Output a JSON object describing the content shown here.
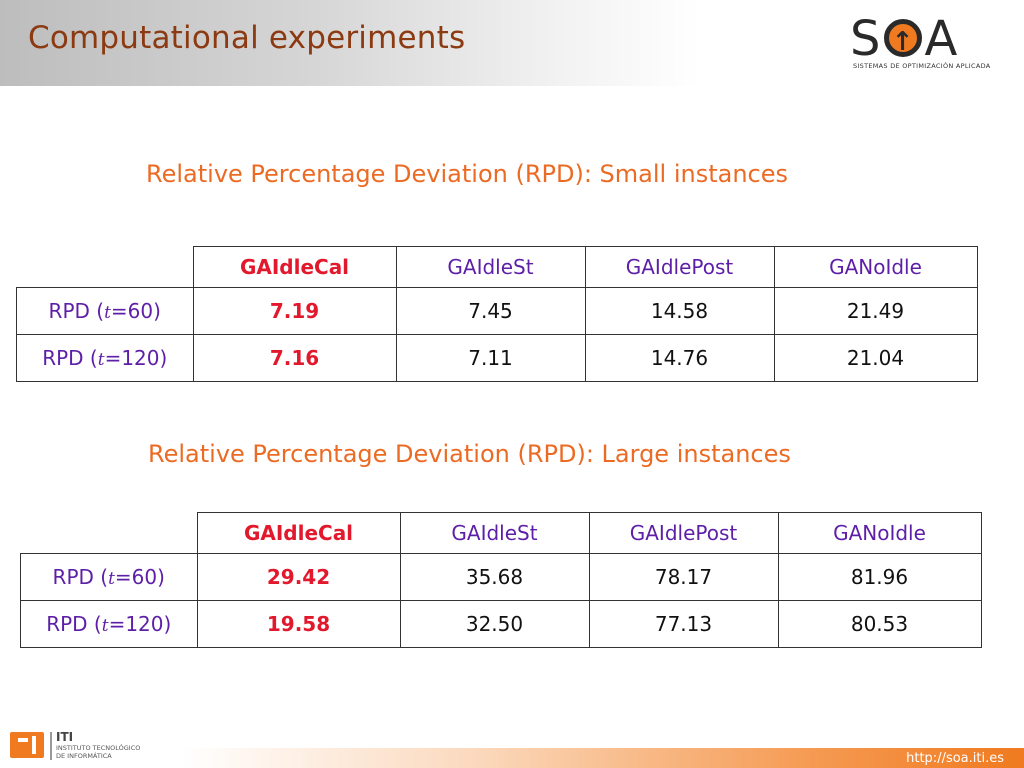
{
  "header": {
    "title": "Computational experiments"
  },
  "brand": {
    "soa_left": "S",
    "soa_right": "A",
    "soa_subtitle": "SISTEMAS DE OPTIMIZACIÓN APLICADA"
  },
  "sections": [
    {
      "title": "Relative Percentage Deviation (RPD): Small instances",
      "columns": [
        "GAIdleCal",
        "GAIdleSt",
        "GAIdlePost",
        "GANoIdle"
      ],
      "rows": [
        {
          "label_pre": "RPD (",
          "label_var": "t",
          "label_post": "=60)",
          "values": [
            "7.19",
            "7.45",
            "14.58",
            "21.49"
          ]
        },
        {
          "label_pre": "RPD (",
          "label_var": "t",
          "label_post": "=120)",
          "values": [
            "7.16",
            "7.11",
            "14.76",
            "21.04"
          ]
        }
      ]
    },
    {
      "title": "Relative Percentage Deviation (RPD): Large instances",
      "columns": [
        "GAIdleCal",
        "GAIdleSt",
        "GAIdlePost",
        "GANoIdle"
      ],
      "rows": [
        {
          "label_pre": "RPD (",
          "label_var": "t",
          "label_post": "=60)",
          "values": [
            "29.42",
            "35.68",
            "78.17",
            "81.96"
          ]
        },
        {
          "label_pre": "RPD (",
          "label_var": "t",
          "label_post": "=120)",
          "values": [
            "19.58",
            "32.50",
            "77.13",
            "80.53"
          ]
        }
      ]
    }
  ],
  "footer": {
    "url": "http://soa.iti.es",
    "iti_name": "ITI",
    "iti_line1": "INSTITUTO TECNOLÓGICO",
    "iti_line2": "DE INFORMÁTICA"
  },
  "colors": {
    "title": "#8b3a12",
    "section": "#ec6b24",
    "header": "#5d1fa8",
    "best": "#e2182c",
    "accent": "#f07a1f"
  }
}
